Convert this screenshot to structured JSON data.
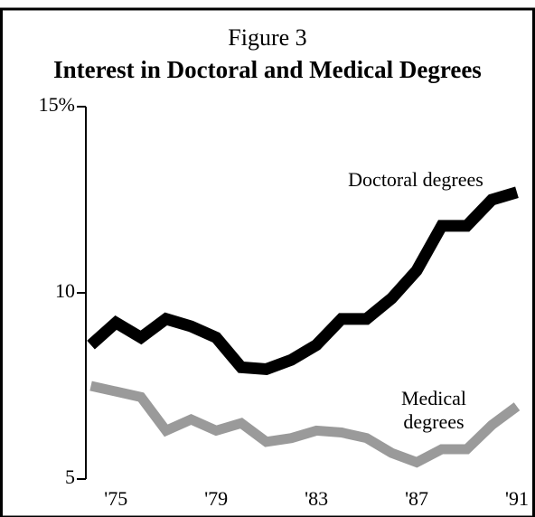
{
  "chart_data": {
    "type": "line",
    "title": "Figure 3",
    "subtitle": "Interest in Doctoral and Medical Degrees",
    "x": [
      1974,
      1975,
      1976,
      1977,
      1978,
      1979,
      1980,
      1981,
      1982,
      1983,
      1984,
      1985,
      1986,
      1987,
      1988,
      1989,
      1990,
      1991
    ],
    "series": [
      {
        "name": "Doctoral degrees",
        "color": "#000000",
        "values": [
          8.6,
          9.2,
          8.8,
          9.3,
          9.1,
          8.8,
          8.0,
          7.95,
          8.2,
          8.6,
          9.3,
          9.3,
          9.85,
          10.6,
          11.8,
          11.8,
          12.5,
          12.7
        ]
      },
      {
        "name": "Medical degrees",
        "color": "#9a9a9a",
        "values": [
          7.5,
          7.35,
          7.2,
          6.3,
          6.6,
          6.3,
          6.5,
          6.0,
          6.1,
          6.3,
          6.25,
          6.1,
          5.7,
          5.45,
          5.8,
          5.8,
          6.45,
          6.95
        ]
      }
    ],
    "xlim": [
      1973.8,
      1991.65
    ],
    "xticks": [
      {
        "value": 1975,
        "label": "'75"
      },
      {
        "value": 1979,
        "label": "'79"
      },
      {
        "value": 1983,
        "label": "'83"
      },
      {
        "value": 1987,
        "label": "'87"
      },
      {
        "value": 1991,
        "label": "'91"
      }
    ],
    "ylim": [
      5,
      15
    ],
    "yticks": [
      5,
      10,
      {
        "value": 15,
        "label": "15%"
      }
    ],
    "grid": false
  }
}
